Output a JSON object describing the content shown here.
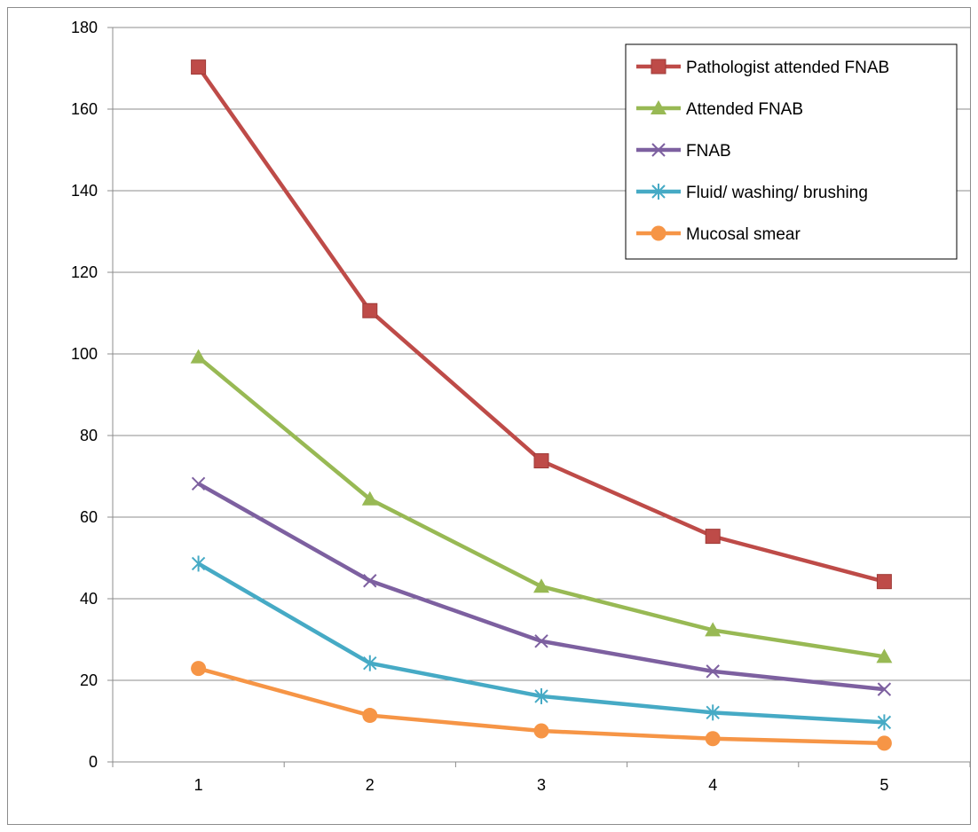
{
  "chart_data": {
    "type": "line",
    "title": "",
    "xlabel": "",
    "ylabel": "",
    "categories": [
      "1",
      "2",
      "3",
      "4",
      "5"
    ],
    "ylim": [
      0,
      180
    ],
    "yticks": [
      "0",
      "20",
      "40",
      "60",
      "80",
      "100",
      "120",
      "140",
      "160",
      "180"
    ],
    "grid": "horizontal",
    "legend_position": "top-right",
    "series": [
      {
        "name": "Pathologist attended FNAB",
        "values": [
          170.3,
          110.6,
          73.8,
          55.3,
          44.2
        ],
        "color": "#be4b48",
        "marker": "square"
      },
      {
        "name": "Attended FNAB",
        "values": [
          99.2,
          64.4,
          43.0,
          32.3,
          25.8
        ],
        "color": "#98b954",
        "marker": "triangle"
      },
      {
        "name": "FNAB",
        "values": [
          68.2,
          44.4,
          29.6,
          22.2,
          17.8
        ],
        "color": "#7d60a0",
        "marker": "x"
      },
      {
        "name": "Fluid/ washing/ brushing",
        "values": [
          48.6,
          24.2,
          16.1,
          12.1,
          9.7
        ],
        "color": "#46aac5",
        "marker": "star"
      },
      {
        "name": "Mucosal smear",
        "values": [
          22.9,
          11.4,
          7.6,
          5.7,
          4.6
        ],
        "color": "#f69546",
        "marker": "circle"
      }
    ]
  }
}
